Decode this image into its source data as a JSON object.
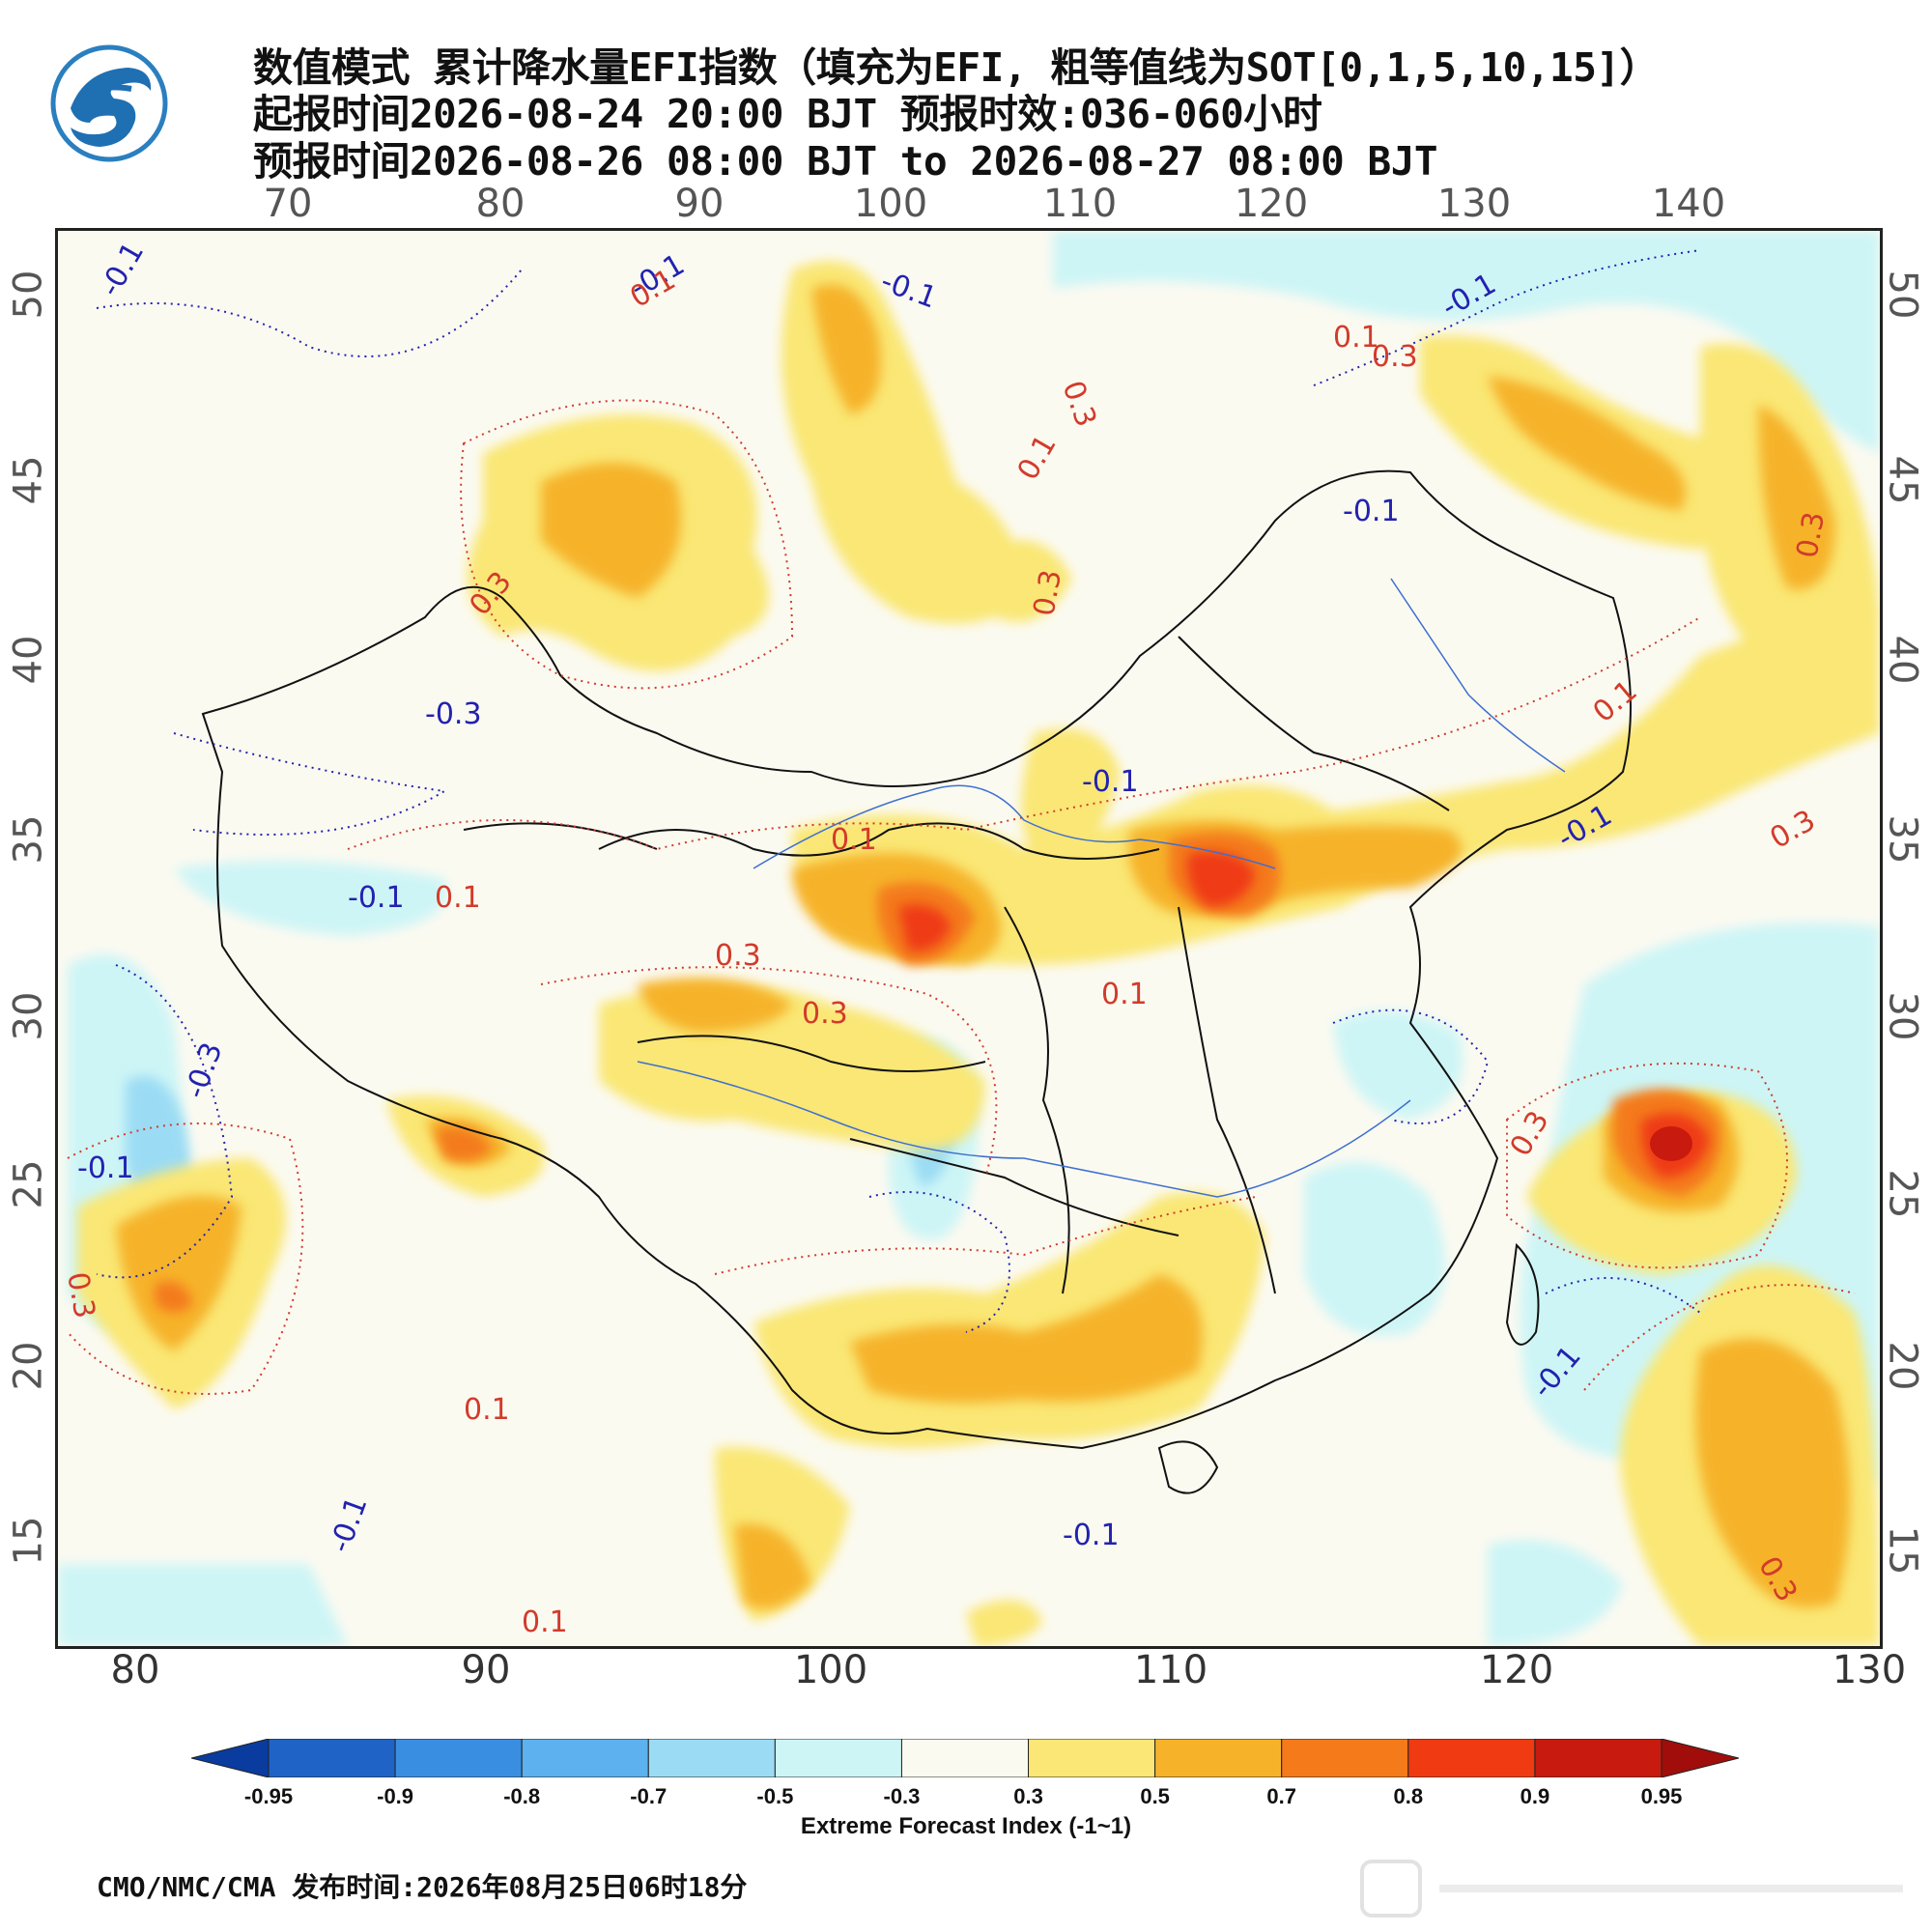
{
  "header": {
    "line1": "数值模式 累计降水量EFI指数（填充为EFI, 粗等值线为SOT[0,1,5,10,15]）",
    "line2": "起报时间2026-08-24 20:00 BJT 预报时效:036-060小时",
    "line3": "预报时间2026-08-26 08:00 BJT to 2026-08-27 08:00 BJT"
  },
  "axes": {
    "top_lon": [
      "70",
      "80",
      "90",
      "100",
      "110",
      "120",
      "130",
      "140"
    ],
    "bottom_lon": [
      "80",
      "90",
      "100",
      "110",
      "120",
      "130"
    ],
    "left_lat": [
      "50",
      "45",
      "40",
      "35",
      "30",
      "25",
      "20",
      "15"
    ],
    "right_lat": [
      "50",
      "45",
      "40",
      "35",
      "30",
      "25",
      "20",
      "15"
    ]
  },
  "contour_labels": [
    "-0.1",
    "0.1",
    "0.3",
    "-0.3"
  ],
  "colorbar": {
    "title": "Extreme Forecast Index (-1~1)",
    "labels": [
      "-0.95",
      "-0.9",
      "-0.8",
      "-0.7",
      "-0.5",
      "-0.3",
      "0.3",
      "0.5",
      "0.7",
      "0.8",
      "0.9",
      "0.95"
    ],
    "colors": [
      "#0a3b9e",
      "#1f63c7",
      "#3a8ee2",
      "#5cb1ee",
      "#9bdcf4",
      "#cdf5f6",
      "#fbfaf1",
      "#fae775",
      "#f6b32a",
      "#f47a1a",
      "#ef3a12",
      "#c81a0e",
      "#a00d0b"
    ]
  },
  "footer": {
    "text": "CMO/NMC/CMA 发布时间:2026年08月25日06时18分"
  }
}
